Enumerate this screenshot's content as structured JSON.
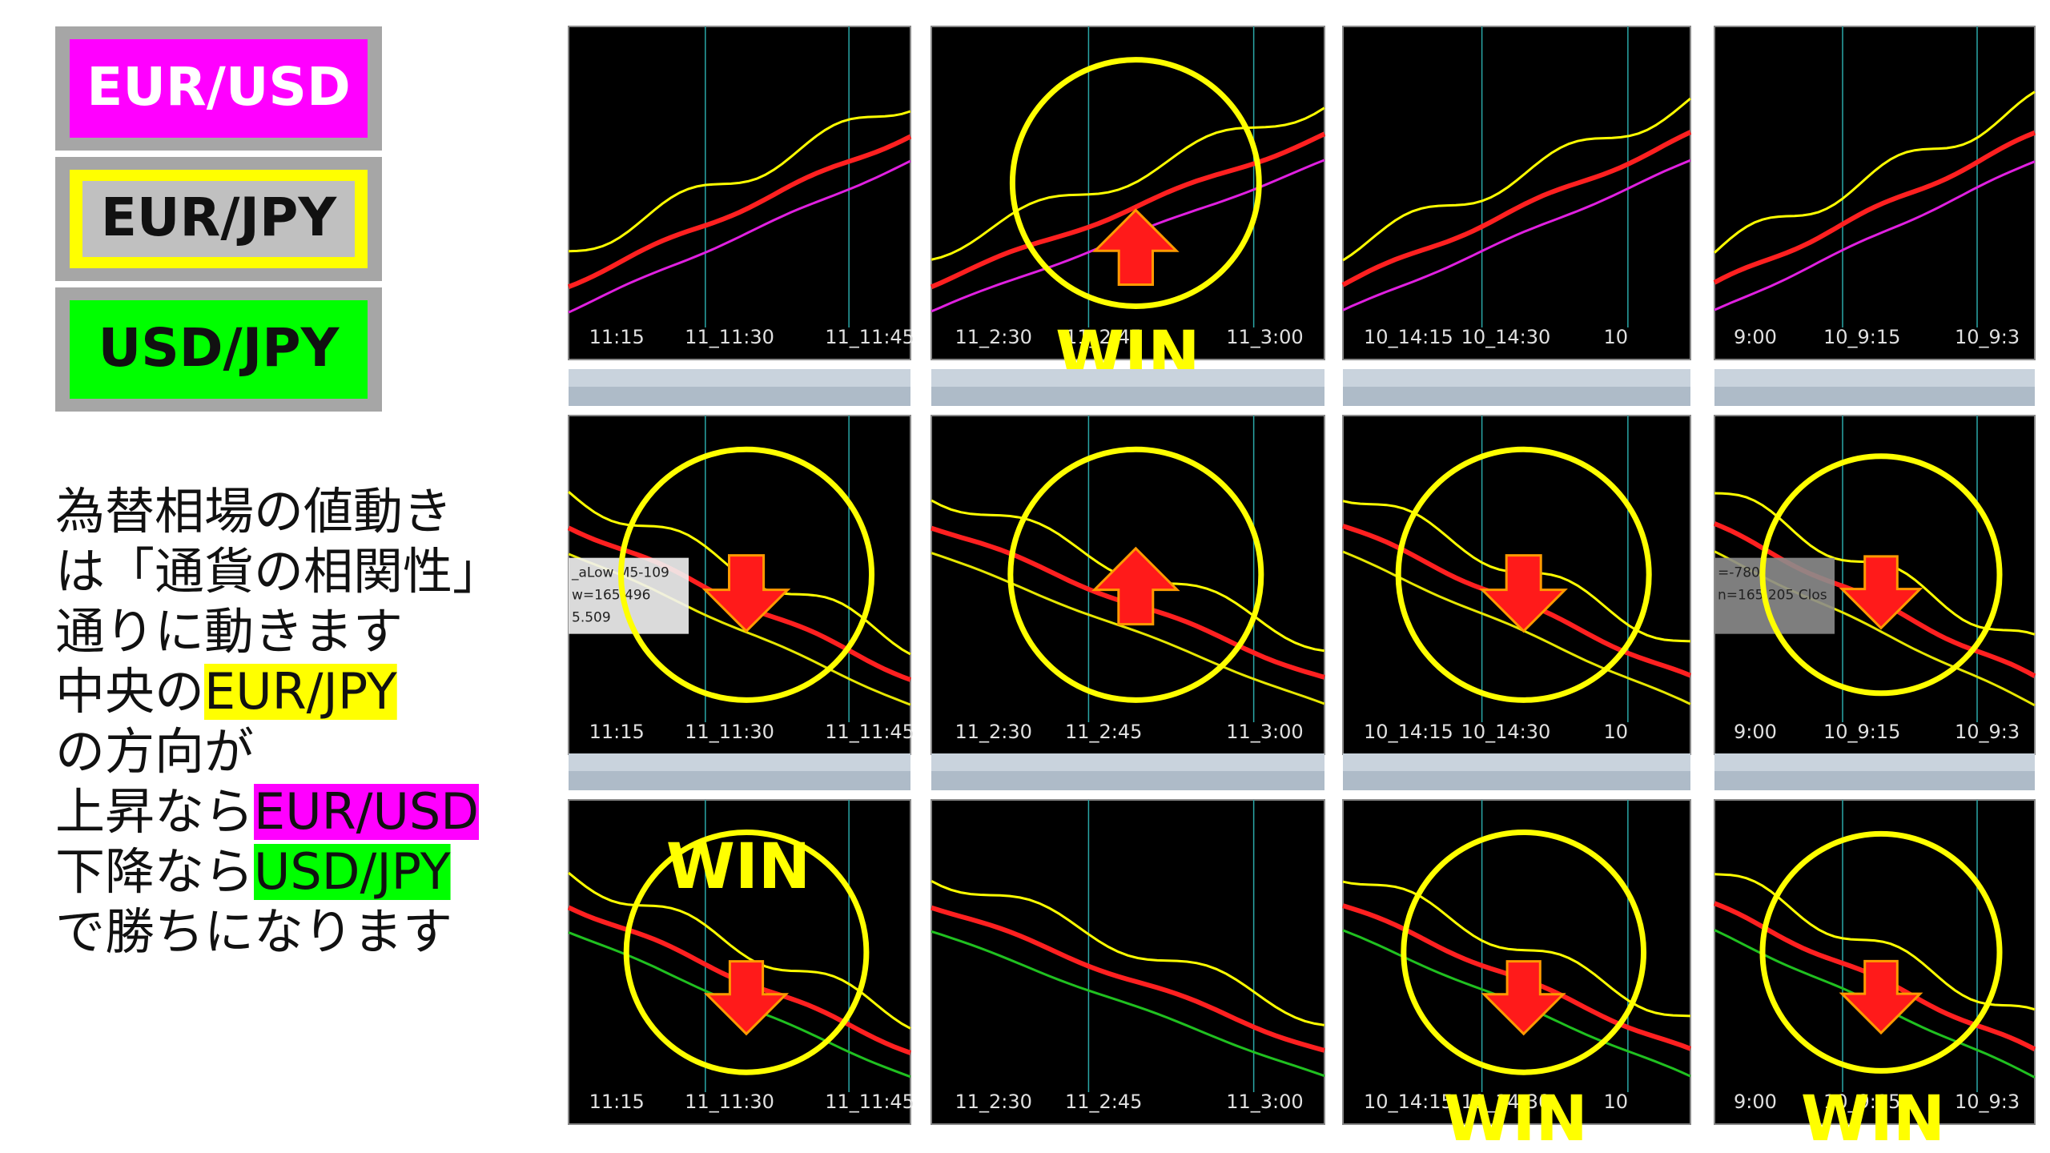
{
  "legend": {
    "pairs": [
      {
        "text": "EUR/USD",
        "color": "#ff00ff"
      },
      {
        "text": "EUR/JPY",
        "color": "#c0c0c0",
        "border": "#ffff00"
      },
      {
        "text": "USD/JPY",
        "color": "#00ff00"
      }
    ]
  },
  "explanation": {
    "lines": [
      [
        {
          "text": "為替相場の値動き"
        }
      ],
      [
        {
          "text": "は「通貨の相関性」"
        }
      ],
      [
        {
          "text": "通りに動きます"
        }
      ],
      [
        {
          "text": "中央の"
        },
        {
          "text": "EUR/JPY",
          "highlight": "#ffff00"
        }
      ],
      [
        {
          "text": "の方向が"
        }
      ],
      [
        {
          "text": "上昇なら"
        },
        {
          "text": "EUR/USD",
          "highlight": "#ff00ff"
        }
      ],
      [
        {
          "text": "下降なら"
        },
        {
          "text": "USD/JPY",
          "highlight": "#00ff00"
        }
      ],
      [
        {
          "text": "で勝ちになります"
        }
      ]
    ]
  },
  "panels": [
    [
      {
        "xlabels": [
          "11:15",
          "11_11:30",
          "11_11:45"
        ]
      },
      {
        "xlabels": [
          "11_2:30",
          "11_2:45",
          "11_3:00"
        ],
        "circle": true,
        "arrow": "up",
        "win": "WIN"
      },
      {
        "xlabels": [
          "10_14:15",
          "10_14:30",
          "10"
        ]
      },
      {
        "xlabels": [
          "9:00",
          "10_9:15",
          "10_9:3"
        ]
      }
    ],
    [
      {
        "xlabels": [
          "11:15",
          "11_11:30",
          "11_11:45"
        ],
        "circle": true,
        "arrow": "down",
        "tooltip": [
          "_aLow M5-109",
          "w=165.496",
          "5.509"
        ]
      },
      {
        "xlabels": [
          "11_2:30",
          "11_2:45",
          "11_3:00"
        ],
        "circle": true,
        "arrow": "up"
      },
      {
        "xlabels": [
          "10_14:15",
          "10_14:30",
          "10"
        ],
        "circle": true,
        "arrow": "down"
      },
      {
        "xlabels": [
          "9:00",
          "10_9:15",
          "10_9:3"
        ],
        "circle": true,
        "arrow": "down",
        "tooltip": [
          "=-780",
          "n=165.205 Clos"
        ]
      }
    ],
    [
      {
        "xlabels": [
          "11:15",
          "11_11:30",
          "11_11:45"
        ],
        "circle": true,
        "arrow": "down",
        "win": "WIN"
      },
      {
        "xlabels": [
          "11_2:30",
          "11_2:45",
          "11_3:00"
        ]
      },
      {
        "xlabels": [
          "10_14:15",
          "10_14:30",
          "10"
        ],
        "circle": true,
        "arrow": "down",
        "win": "WIN"
      },
      {
        "xlabels": [
          "9:00",
          "10_9:15",
          "10_9:3"
        ],
        "circle": true,
        "arrow": "down",
        "win": "WIN"
      }
    ]
  ]
}
